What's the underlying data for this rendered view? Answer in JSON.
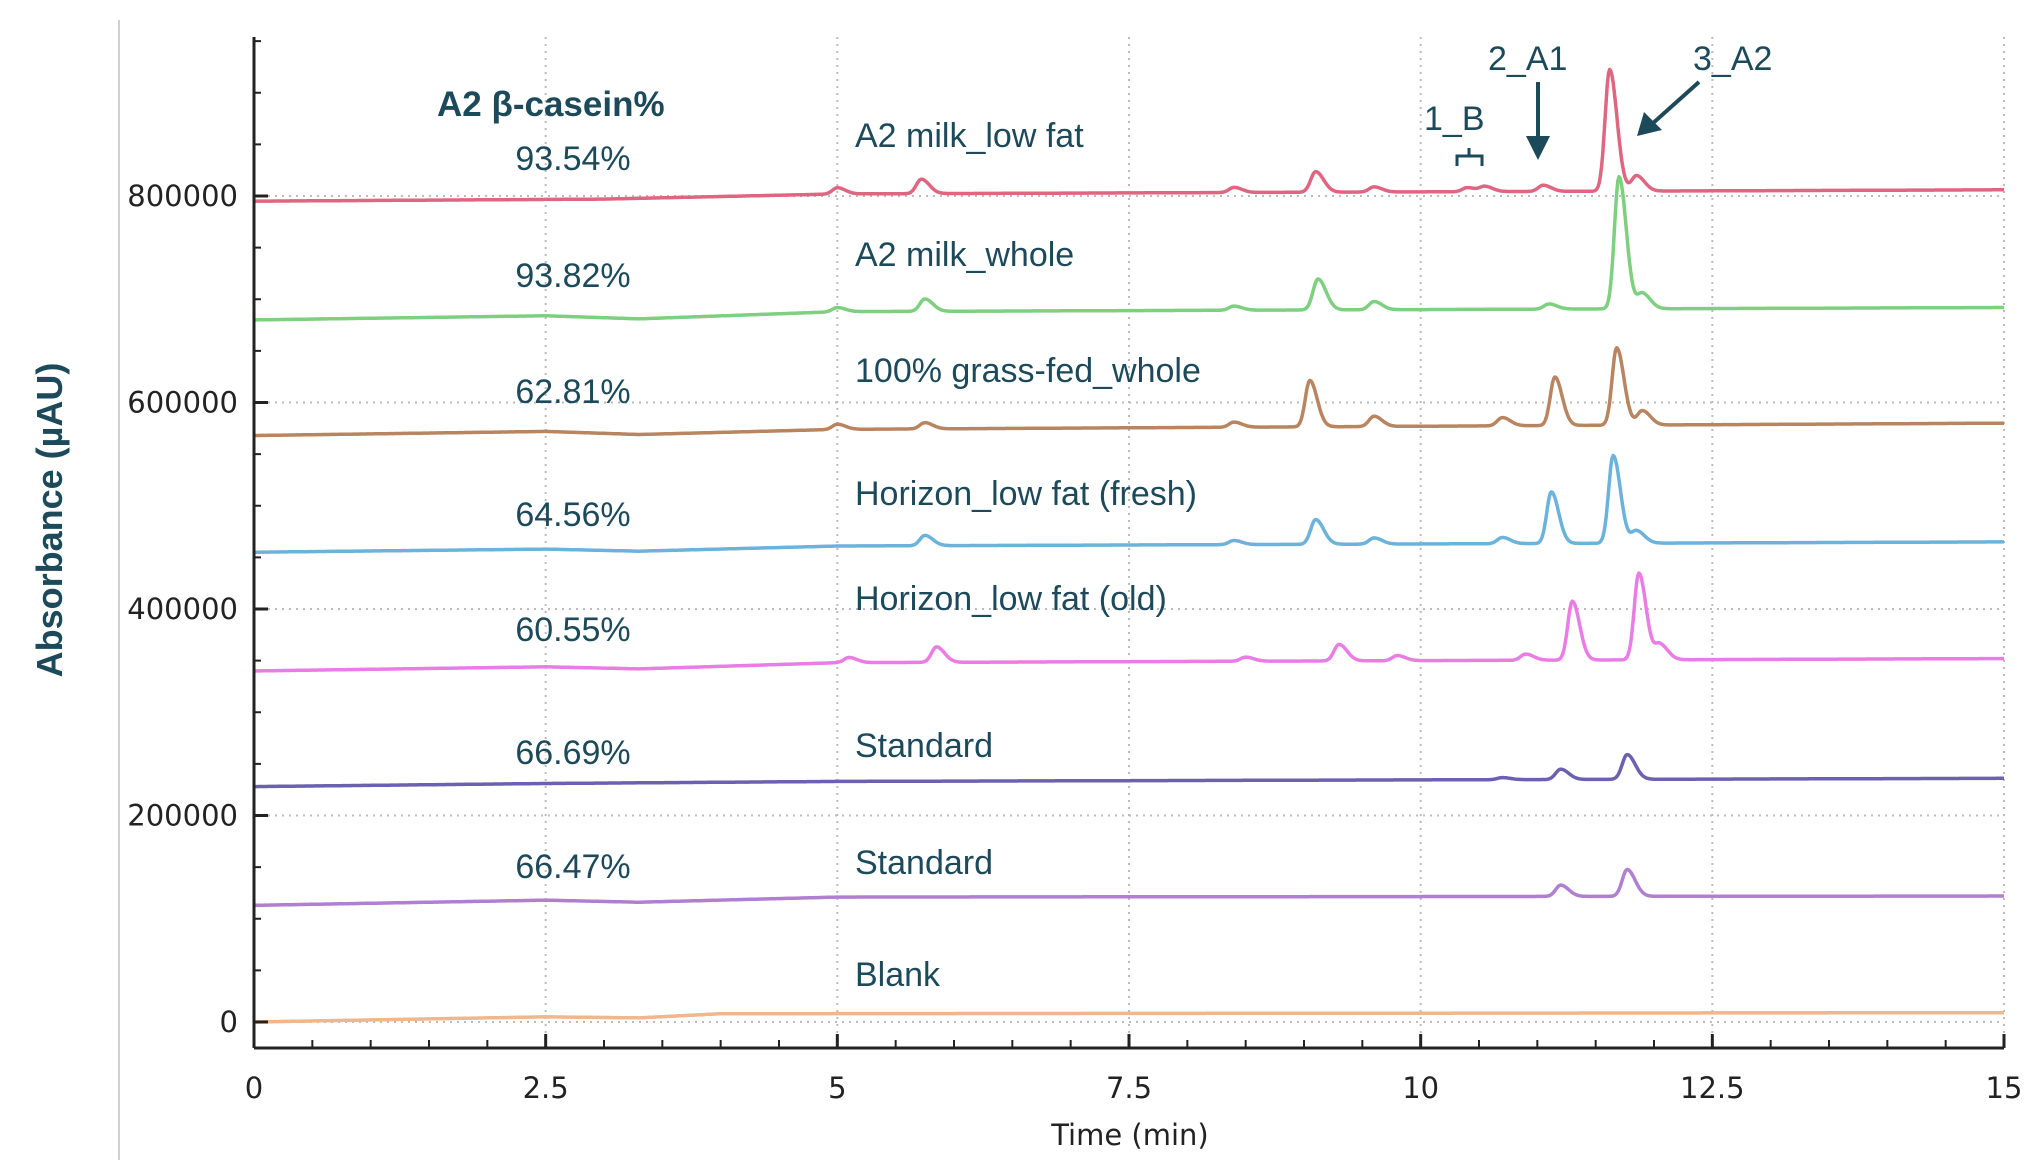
{
  "chart_data": {
    "type": "line",
    "xlabel": "Time (min)",
    "ylabel": "Absorbance (µAU)",
    "xlim": [
      0,
      15
    ],
    "ylim": [
      -50000,
      955000
    ],
    "xticks": [
      "0",
      "2.5",
      "5",
      "7.5",
      "10",
      "12.5",
      "15"
    ],
    "xtick_values": [
      0,
      2.5,
      5,
      7.5,
      10,
      12.5,
      15
    ],
    "yticks": [
      "0",
      "200000",
      "400000",
      "600000",
      "800000"
    ],
    "ytick_values": [
      0,
      200000,
      400000,
      600000,
      800000
    ],
    "grid": "dotted vertical and horizontal at major ticks",
    "percent_header": "A2 β-casein%",
    "peak_annotations": [
      {
        "label": "1_B",
        "time": 10.45
      },
      {
        "label": "2_A1",
        "time": 11.05
      },
      {
        "label": "3_A2",
        "time": 11.65
      }
    ],
    "series": [
      {
        "name": "A2 milk_low fat",
        "percent": "93.54%",
        "color": "#e06580",
        "baseline": [
          [
            0,
            795000
          ],
          [
            3,
            797000
          ],
          [
            5,
            802000
          ],
          [
            15,
            806000
          ]
        ],
        "peaks": [
          [
            5.0,
            6000
          ],
          [
            5.72,
            14000
          ],
          [
            8.4,
            5000
          ],
          [
            9.1,
            20000
          ],
          [
            9.6,
            5000
          ],
          [
            10.4,
            4000
          ],
          [
            10.55,
            5000
          ],
          [
            11.05,
            6000
          ],
          [
            11.62,
            118000
          ],
          [
            11.85,
            15000
          ]
        ]
      },
      {
        "name": "A2 milk_whole",
        "percent": "93.82%",
        "color": "#7fcf80",
        "baseline": [
          [
            0,
            680000
          ],
          [
            2.5,
            684000
          ],
          [
            3.3,
            681000
          ],
          [
            5,
            688000
          ],
          [
            15,
            692000
          ]
        ],
        "peaks": [
          [
            5.0,
            4000
          ],
          [
            5.75,
            12000
          ],
          [
            8.4,
            4000
          ],
          [
            9.12,
            30000
          ],
          [
            9.6,
            8000
          ],
          [
            11.1,
            5000
          ],
          [
            11.7,
            128000
          ],
          [
            11.9,
            15000
          ]
        ]
      },
      {
        "name": "100% grass-fed_whole",
        "percent": "62.81%",
        "color": "#b88560",
        "baseline": [
          [
            0,
            568000
          ],
          [
            2.5,
            572000
          ],
          [
            3.3,
            569000
          ],
          [
            5,
            574000
          ],
          [
            15,
            580000
          ]
        ],
        "peaks": [
          [
            5.0,
            5000
          ],
          [
            5.75,
            6000
          ],
          [
            8.4,
            5000
          ],
          [
            9.05,
            45000
          ],
          [
            9.6,
            10000
          ],
          [
            10.7,
            8000
          ],
          [
            11.15,
            47000
          ],
          [
            11.68,
            75000
          ],
          [
            11.9,
            14000
          ]
        ]
      },
      {
        "name": "Horizon_low fat (fresh)",
        "percent": "64.56%",
        "color": "#6cb3dc",
        "baseline": [
          [
            0,
            455000
          ],
          [
            2.5,
            458000
          ],
          [
            3.3,
            456000
          ],
          [
            5,
            461000
          ],
          [
            15,
            465000
          ]
        ],
        "peaks": [
          [
            5.75,
            10000
          ],
          [
            8.4,
            4000
          ],
          [
            9.1,
            24000
          ],
          [
            9.6,
            6000
          ],
          [
            10.7,
            6000
          ],
          [
            11.12,
            50000
          ],
          [
            11.65,
            85000
          ],
          [
            11.85,
            12000
          ]
        ]
      },
      {
        "name": "Horizon_low fat (old)",
        "percent": "60.55%",
        "color": "#ea7ce6",
        "baseline": [
          [
            0,
            340000
          ],
          [
            2.5,
            344000
          ],
          [
            3.3,
            342000
          ],
          [
            5,
            348000
          ],
          [
            15,
            352000
          ]
        ],
        "peaks": [
          [
            5.1,
            5000
          ],
          [
            5.85,
            15000
          ],
          [
            8.5,
            4000
          ],
          [
            9.3,
            16000
          ],
          [
            9.8,
            5000
          ],
          [
            10.9,
            6000
          ],
          [
            11.3,
            57000
          ],
          [
            11.87,
            84000
          ],
          [
            12.05,
            15000
          ]
        ]
      },
      {
        "name": "Standard",
        "percent": "66.69%",
        "color": "#6a62b0",
        "baseline": [
          [
            0,
            228000
          ],
          [
            2.5,
            231000
          ],
          [
            5,
            233000
          ],
          [
            15,
            236000
          ]
        ],
        "peaks": [
          [
            10.7,
            2000
          ],
          [
            11.2,
            10000
          ],
          [
            11.77,
            24000
          ]
        ]
      },
      {
        "name": "Standard",
        "percent": "66.47%",
        "color": "#b07fd2",
        "baseline": [
          [
            0,
            113000
          ],
          [
            2.5,
            118000
          ],
          [
            3.3,
            116000
          ],
          [
            5,
            121000
          ],
          [
            15,
            122000
          ]
        ],
        "peaks": [
          [
            11.2,
            11000
          ],
          [
            11.77,
            26000
          ]
        ]
      },
      {
        "name": "Blank",
        "percent": "",
        "color": "#f0b68c",
        "baseline": [
          [
            0,
            0
          ],
          [
            1,
            2000
          ],
          [
            2.5,
            5000
          ],
          [
            3.3,
            4000
          ],
          [
            4,
            8000
          ],
          [
            15,
            9000
          ]
        ],
        "peaks": []
      }
    ]
  }
}
